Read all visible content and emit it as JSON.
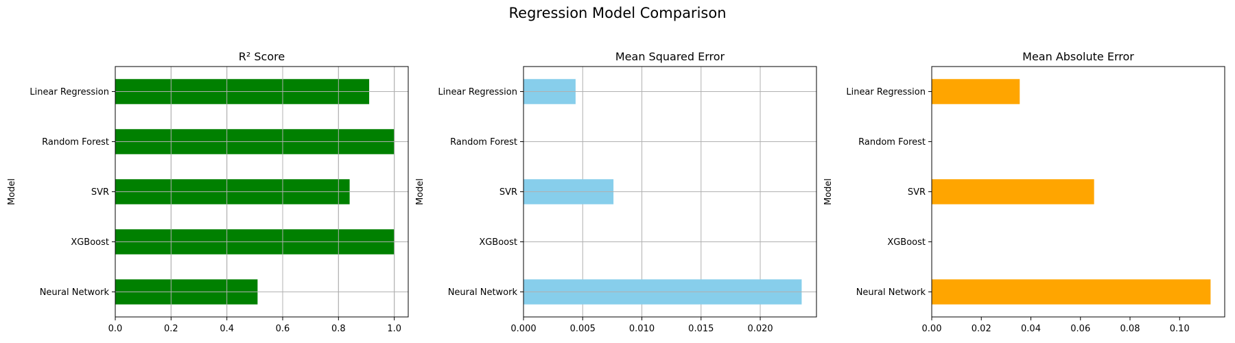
{
  "figure": {
    "title": "Regression Model Comparison"
  },
  "chart_data": [
    {
      "type": "bar",
      "orientation": "horizontal",
      "title": "R² Score",
      "xlabel": "",
      "ylabel": "Model",
      "categories": [
        "Linear Regression",
        "Random Forest",
        "SVR",
        "XGBoost",
        "Neural Network"
      ],
      "values": [
        0.91,
        1.0,
        0.84,
        1.0,
        0.51
      ],
      "xlim": [
        0,
        1.05
      ],
      "xticks": [
        0,
        0.2,
        0.4,
        0.6,
        0.8,
        1.0
      ],
      "xtick_labels": [
        "0.0",
        "0.2",
        "0.4",
        "0.6",
        "0.8",
        "1.0"
      ],
      "color": "#008000",
      "grid": true
    },
    {
      "type": "bar",
      "orientation": "horizontal",
      "title": "Mean Squared Error",
      "xlabel": "",
      "ylabel": "Model",
      "categories": [
        "Linear Regression",
        "Random Forest",
        "SVR",
        "XGBoost",
        "Neural Network"
      ],
      "values": [
        0.0044,
        0.0,
        0.0076,
        0.0,
        0.0235
      ],
      "xlim": [
        0,
        0.02475
      ],
      "xticks": [
        0,
        0.005,
        0.01,
        0.015,
        0.02
      ],
      "xtick_labels": [
        "0.000",
        "0.005",
        "0.010",
        "0.015",
        "0.020"
      ],
      "color": "#87CEEB",
      "grid": true
    },
    {
      "type": "bar",
      "orientation": "horizontal",
      "title": "Mean Absolute Error",
      "xlabel": "",
      "ylabel": "Model",
      "categories": [
        "Linear Regression",
        "Random Forest",
        "SVR",
        "XGBoost",
        "Neural Network"
      ],
      "values": [
        0.0355,
        0.0,
        0.0655,
        0.0,
        0.1125
      ],
      "xlim": [
        0,
        0.1182
      ],
      "xticks": [
        0,
        0.02,
        0.04,
        0.06,
        0.08,
        0.1
      ],
      "xtick_labels": [
        "0.00",
        "0.02",
        "0.04",
        "0.06",
        "0.08",
        "0.10"
      ],
      "color": "#FFA500",
      "grid": false
    }
  ]
}
